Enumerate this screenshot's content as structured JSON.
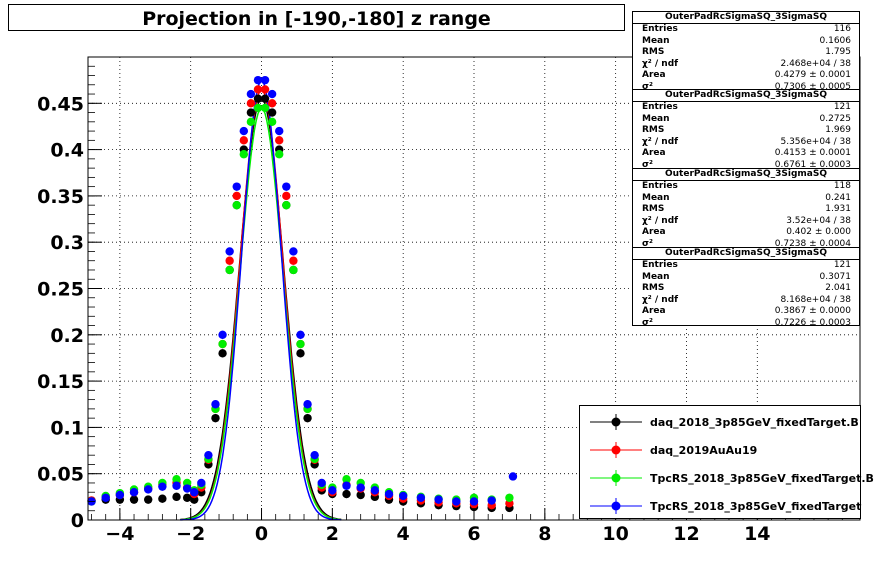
{
  "chart_data": {
    "type": "scatter",
    "title": "Projection in [-190,-180] z range",
    "xlabel": "",
    "ylabel": "",
    "xlim": [
      -4.9,
      16.9
    ],
    "ylim": [
      0,
      0.5
    ],
    "grid": true,
    "legend_position": "bottom-right",
    "x_ticks": [
      "−4",
      "−2",
      "0",
      "2",
      "4",
      "6",
      "8",
      "10",
      "12",
      "14"
    ],
    "x_tick_values": [
      -4,
      -2,
      0,
      2,
      4,
      6,
      8,
      10,
      12,
      14
    ],
    "y_ticks": [
      "0",
      "0.05",
      "0.1",
      "0.15",
      "0.2",
      "0.25",
      "0.3",
      "0.35",
      "0.4",
      "0.45"
    ],
    "y_tick_values": [
      0,
      0.05,
      0.1,
      0.15,
      0.2,
      0.25,
      0.3,
      0.35,
      0.4,
      0.45
    ],
    "series": [
      {
        "name": "daq_2018_3p85GeV_fixedTarget.B",
        "color": "#000000",
        "peak": 0.455,
        "sigma": 0.62,
        "points": [
          [
            -4.8,
            0.021
          ],
          [
            -4.4,
            0.022
          ],
          [
            -4.0,
            0.022
          ],
          [
            -3.6,
            0.022
          ],
          [
            -3.2,
            0.022
          ],
          [
            -2.8,
            0.023
          ],
          [
            -2.4,
            0.025
          ],
          [
            -2.1,
            0.024
          ],
          [
            -1.9,
            0.022
          ],
          [
            -1.7,
            0.03
          ],
          [
            -1.5,
            0.06
          ],
          [
            -1.3,
            0.11
          ],
          [
            -1.1,
            0.18
          ],
          [
            -0.9,
            0.27
          ],
          [
            -0.7,
            0.34
          ],
          [
            -0.5,
            0.4
          ],
          [
            -0.3,
            0.44
          ],
          [
            -0.1,
            0.455
          ],
          [
            0.1,
            0.455
          ],
          [
            0.3,
            0.44
          ],
          [
            0.5,
            0.4
          ],
          [
            0.7,
            0.34
          ],
          [
            0.9,
            0.27
          ],
          [
            1.1,
            0.18
          ],
          [
            1.3,
            0.11
          ],
          [
            1.5,
            0.06
          ],
          [
            1.7,
            0.032
          ],
          [
            2.0,
            0.028
          ],
          [
            2.4,
            0.028
          ],
          [
            2.8,
            0.027
          ],
          [
            3.2,
            0.025
          ],
          [
            3.6,
            0.022
          ],
          [
            4.0,
            0.02
          ],
          [
            4.5,
            0.018
          ],
          [
            5.0,
            0.016
          ],
          [
            5.5,
            0.015
          ],
          [
            6.0,
            0.014
          ],
          [
            6.5,
            0.013
          ],
          [
            7.0,
            0.013
          ]
        ]
      },
      {
        "name": "daq_2019AuAu19",
        "color": "#ff0000",
        "peak": 0.465,
        "sigma": 0.6,
        "points": [
          [
            -4.8,
            0.021
          ],
          [
            -4.4,
            0.025
          ],
          [
            -4.0,
            0.027
          ],
          [
            -3.6,
            0.03
          ],
          [
            -3.2,
            0.034
          ],
          [
            -2.8,
            0.038
          ],
          [
            -2.4,
            0.04
          ],
          [
            -2.1,
            0.035
          ],
          [
            -1.9,
            0.028
          ],
          [
            -1.7,
            0.035
          ],
          [
            -1.5,
            0.065
          ],
          [
            -1.3,
            0.12
          ],
          [
            -1.1,
            0.19
          ],
          [
            -0.9,
            0.28
          ],
          [
            -0.7,
            0.35
          ],
          [
            -0.5,
            0.41
          ],
          [
            -0.3,
            0.45
          ],
          [
            -0.1,
            0.465
          ],
          [
            0.1,
            0.465
          ],
          [
            0.3,
            0.45
          ],
          [
            0.5,
            0.41
          ],
          [
            0.7,
            0.35
          ],
          [
            0.9,
            0.28
          ],
          [
            1.1,
            0.19
          ],
          [
            1.3,
            0.12
          ],
          [
            1.5,
            0.065
          ],
          [
            1.7,
            0.035
          ],
          [
            2.0,
            0.03
          ],
          [
            2.4,
            0.038
          ],
          [
            2.8,
            0.034
          ],
          [
            3.2,
            0.03
          ],
          [
            3.6,
            0.026
          ],
          [
            4.0,
            0.023
          ],
          [
            4.5,
            0.021
          ],
          [
            5.0,
            0.019
          ],
          [
            5.5,
            0.018
          ],
          [
            6.0,
            0.017
          ],
          [
            6.5,
            0.016
          ],
          [
            7.0,
            0.018
          ]
        ]
      },
      {
        "name": "TpcRS_2018_3p85GeV_fixedTarget.B",
        "color": "#00ee00",
        "peak": 0.445,
        "sigma": 0.6,
        "points": [
          [
            -4.8,
            0.02
          ],
          [
            -4.4,
            0.026
          ],
          [
            -4.0,
            0.029
          ],
          [
            -3.6,
            0.033
          ],
          [
            -3.2,
            0.036
          ],
          [
            -2.8,
            0.04
          ],
          [
            -2.4,
            0.044
          ],
          [
            -2.1,
            0.04
          ],
          [
            -1.9,
            0.032
          ],
          [
            -1.7,
            0.038
          ],
          [
            -1.5,
            0.066
          ],
          [
            -1.3,
            0.12
          ],
          [
            -1.1,
            0.19
          ],
          [
            -0.9,
            0.27
          ],
          [
            -0.7,
            0.34
          ],
          [
            -0.5,
            0.395
          ],
          [
            -0.3,
            0.43
          ],
          [
            -0.1,
            0.445
          ],
          [
            0.1,
            0.445
          ],
          [
            0.3,
            0.43
          ],
          [
            0.5,
            0.395
          ],
          [
            0.7,
            0.34
          ],
          [
            0.9,
            0.27
          ],
          [
            1.1,
            0.19
          ],
          [
            1.3,
            0.12
          ],
          [
            1.5,
            0.066
          ],
          [
            1.7,
            0.038
          ],
          [
            2.0,
            0.035
          ],
          [
            2.4,
            0.044
          ],
          [
            2.8,
            0.04
          ],
          [
            3.2,
            0.035
          ],
          [
            3.6,
            0.03
          ],
          [
            4.0,
            0.027
          ],
          [
            4.5,
            0.025
          ],
          [
            5.0,
            0.023
          ],
          [
            5.5,
            0.022
          ],
          [
            6.0,
            0.024
          ],
          [
            6.5,
            0.022
          ],
          [
            7.0,
            0.024
          ]
        ]
      },
      {
        "name": "TpcRS_2018_3p85GeV_fixedTarget",
        "color": "#0000ff",
        "peak": 0.475,
        "sigma": 0.56,
        "points": [
          [
            -4.8,
            0.02
          ],
          [
            -4.4,
            0.024
          ],
          [
            -4.0,
            0.027
          ],
          [
            -3.6,
            0.03
          ],
          [
            -3.2,
            0.033
          ],
          [
            -2.8,
            0.036
          ],
          [
            -2.4,
            0.037
          ],
          [
            -2.1,
            0.034
          ],
          [
            -1.9,
            0.03
          ],
          [
            -1.7,
            0.04
          ],
          [
            -1.5,
            0.07
          ],
          [
            -1.3,
            0.125
          ],
          [
            -1.1,
            0.2
          ],
          [
            -0.9,
            0.29
          ],
          [
            -0.7,
            0.36
          ],
          [
            -0.5,
            0.42
          ],
          [
            -0.3,
            0.46
          ],
          [
            -0.1,
            0.475
          ],
          [
            0.1,
            0.475
          ],
          [
            0.3,
            0.46
          ],
          [
            0.5,
            0.42
          ],
          [
            0.7,
            0.36
          ],
          [
            0.9,
            0.29
          ],
          [
            1.1,
            0.2
          ],
          [
            1.3,
            0.125
          ],
          [
            1.5,
            0.07
          ],
          [
            1.7,
            0.04
          ],
          [
            2.0,
            0.032
          ],
          [
            2.4,
            0.037
          ],
          [
            2.8,
            0.035
          ],
          [
            3.2,
            0.032
          ],
          [
            3.6,
            0.028
          ],
          [
            4.0,
            0.026
          ],
          [
            4.5,
            0.024
          ],
          [
            5.0,
            0.022
          ],
          [
            5.5,
            0.02
          ],
          [
            6.0,
            0.02
          ],
          [
            6.5,
            0.021
          ],
          [
            7.1,
            0.047
          ]
        ]
      }
    ]
  },
  "stats_boxes": [
    {
      "title": "OuterPadRcSigmaSQ_3SigmaSQ",
      "rows": [
        [
          "Entries",
          "116"
        ],
        [
          "Mean",
          "0.1606"
        ],
        [
          "RMS",
          "1.795"
        ],
        [
          "χ² / ndf",
          "2.468e+04 / 38"
        ],
        [
          "Area",
          "0.4279 ± 0.0001"
        ],
        [
          "σ²",
          "0.7306 ± 0.0005"
        ]
      ]
    },
    {
      "title": "OuterPadRcSigmaSQ_3SigmaSQ",
      "rows": [
        [
          "Entries",
          "121"
        ],
        [
          "Mean",
          "0.2725"
        ],
        [
          "RMS",
          "1.969"
        ],
        [
          "χ² / ndf",
          "5.356e+04 / 38"
        ],
        [
          "Area",
          "0.4153 ± 0.0001"
        ],
        [
          "σ²",
          "0.6761 ± 0.0003"
        ]
      ]
    },
    {
      "title": "OuterPadRcSigmaSQ_3SigmaSQ",
      "rows": [
        [
          "Entries",
          "118"
        ],
        [
          "Mean",
          "0.241"
        ],
        [
          "RMS",
          "1.931"
        ],
        [
          "χ² / ndf",
          "3.52e+04 / 38"
        ],
        [
          "Area",
          "0.402 ± 0.000"
        ],
        [
          "σ²",
          "0.7238 ± 0.0004"
        ]
      ]
    },
    {
      "title": "OuterPadRcSigmaSQ_3SigmaSQ",
      "rows": [
        [
          "Entries",
          "121"
        ],
        [
          "Mean",
          "0.3071"
        ],
        [
          "RMS",
          "2.041"
        ],
        [
          "χ² / ndf",
          "8.168e+04 / 38"
        ],
        [
          "Area",
          "0.3867 ± 0.0000"
        ],
        [
          "σ²",
          "0.7226 ± 0.0003"
        ]
      ]
    }
  ]
}
